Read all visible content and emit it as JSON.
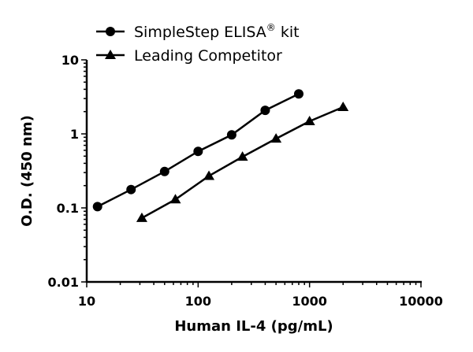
{
  "chart_data": {
    "type": "line",
    "xlabel": "Human IL-4 (pg/mL)",
    "ylabel": "O.D. (450 nm)",
    "xscale": "log",
    "yscale": "log",
    "xlim": [
      10,
      10000
    ],
    "ylim": [
      0.01,
      10
    ],
    "x_ticks": [
      "10",
      "100",
      "1000",
      "10000"
    ],
    "y_ticks": [
      "0.01",
      "0.1",
      "1",
      "10"
    ],
    "grid": false,
    "legend_position": "top",
    "series": [
      {
        "name": "SimpleStep ELISA",
        "name_superscript": "®",
        "name_suffix": " kit",
        "marker": "circle",
        "color": "#000000",
        "x": [
          12.5,
          25,
          50,
          100,
          200,
          400,
          800
        ],
        "y": [
          0.104,
          0.177,
          0.31,
          0.58,
          0.97,
          2.08,
          3.47
        ]
      },
      {
        "name": "Leading Competitor",
        "marker": "triangle",
        "color": "#000000",
        "x": [
          31.25,
          62.5,
          125,
          250,
          500,
          1000,
          2000
        ],
        "y": [
          0.073,
          0.13,
          0.27,
          0.49,
          0.86,
          1.48,
          2.3
        ]
      }
    ]
  }
}
